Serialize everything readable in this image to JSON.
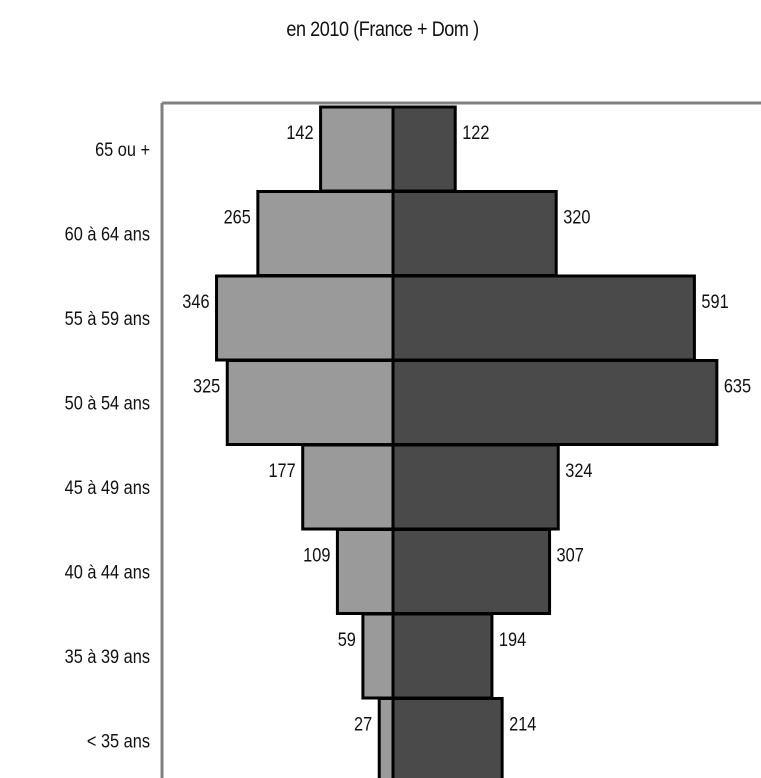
{
  "chart_data": {
    "type": "bar",
    "orientation": "horizontal",
    "layout": "population-pyramid",
    "title": "en 2010 (France + Dom )",
    "categories": [
      "65 ou +",
      "60 à 64 ans",
      "55 à 59 ans",
      "50 à 54 ans",
      "45 à 49 ans",
      "40 à 44 ans",
      "35 à 39 ans",
      "< 35 ans"
    ],
    "series": [
      {
        "side": "left",
        "values": [
          142,
          265,
          346,
          325,
          177,
          109,
          59,
          27
        ],
        "color": "#9a9a9a"
      },
      {
        "side": "right",
        "values": [
          122,
          320,
          591,
          635,
          324,
          307,
          194,
          214
        ],
        "color": "#4a4a4a"
      }
    ],
    "data_labels": true,
    "grid": false,
    "legend": "none",
    "axis_color": "#808080",
    "bar_stroke": "#000000"
  }
}
